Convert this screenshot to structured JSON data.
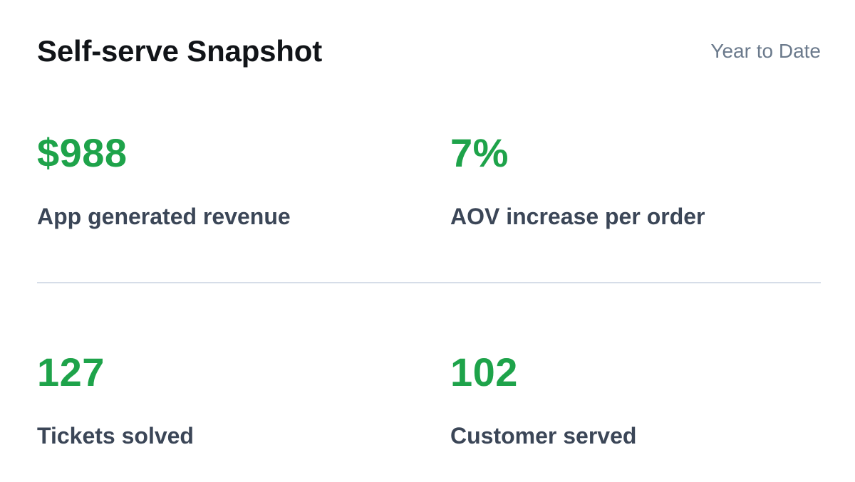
{
  "card": {
    "title": "Self-serve Snapshot",
    "period": "Year to Date"
  },
  "metrics": [
    {
      "value": "$988",
      "label": "App generated revenue"
    },
    {
      "value": "7%",
      "label": "AOV increase per order"
    },
    {
      "value": "127",
      "label": "Tickets solved"
    },
    {
      "value": "102",
      "label": "Customer served"
    }
  ],
  "colors": {
    "accent_green": "#1ea34a",
    "label_text": "#3b4657",
    "title_text": "#111418",
    "period_text": "#6b7a8c",
    "divider": "#d6dde8"
  }
}
